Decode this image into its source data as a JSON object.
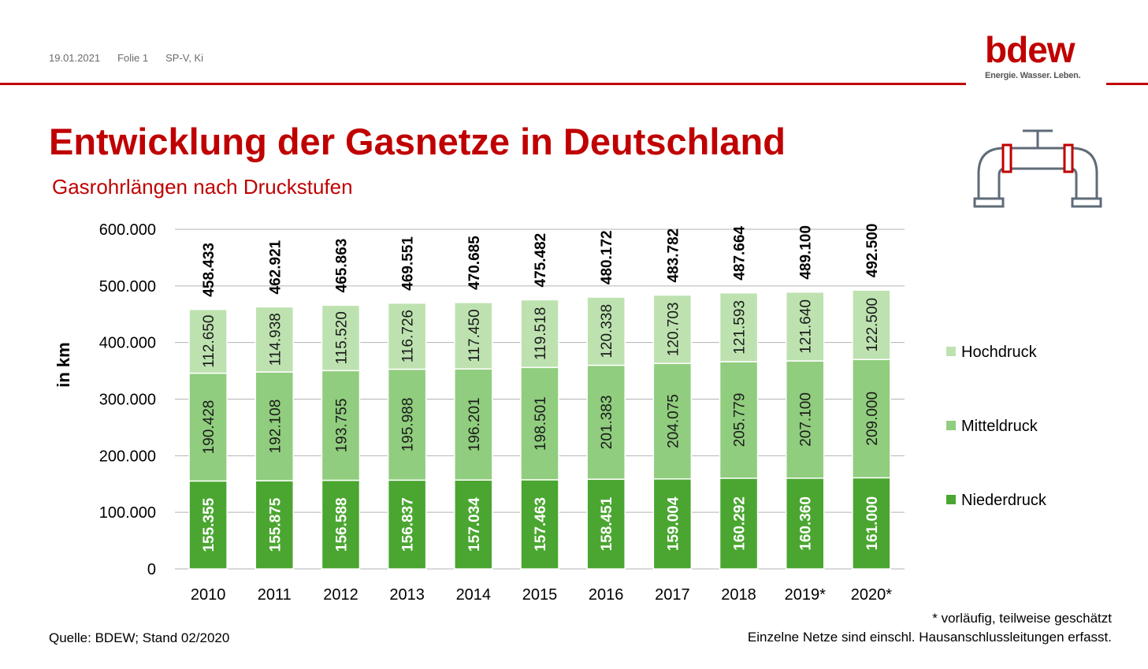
{
  "header": {
    "date": "19.01.2021",
    "slide": "Folie 1",
    "author": "SP-V, Ki"
  },
  "logo": {
    "word": "bdew",
    "tagline": "Energie. Wasser. Leben."
  },
  "title": "Entwicklung der Gasnetze in Deutschland",
  "subtitle": "Gasrohrlängen nach Druckstufen",
  "icons": [
    "pipe-icon"
  ],
  "colors": {
    "accent": "#c00000",
    "niederdruck": "#4aa630",
    "mitteldruck": "#90cd7e",
    "hochdruck": "#bde2b0"
  },
  "chart_data": {
    "type": "bar",
    "stacked": true,
    "categories": [
      "2010",
      "2011",
      "2012",
      "2013",
      "2014",
      "2015",
      "2016",
      "2017",
      "2018",
      "2019*",
      "2020*"
    ],
    "series": [
      {
        "name": "Niederdruck",
        "values": [
          "155.355",
          "155.875",
          "156.588",
          "156.837",
          "157.034",
          "157.463",
          "158.451",
          "159.004",
          "160.292",
          "160.360",
          "161.000"
        ]
      },
      {
        "name": "Mitteldruck",
        "values": [
          "190.428",
          "192.108",
          "193.755",
          "195.988",
          "196.201",
          "198.501",
          "201.383",
          "204.075",
          "205.779",
          "207.100",
          "209.000"
        ]
      },
      {
        "name": "Hochdruck",
        "values": [
          "112.650",
          "114.938",
          "115.520",
          "116.726",
          "117.450",
          "119.518",
          "120.338",
          "120.703",
          "121.593",
          "121.640",
          "122.500"
        ]
      }
    ],
    "totals": [
      "458.433",
      "462.921",
      "465.863",
      "469.551",
      "470.685",
      "475.482",
      "480.172",
      "483.782",
      "487.664",
      "489.100",
      "492.500"
    ],
    "ylabel": "in km",
    "ylim": [
      0,
      600000
    ],
    "yticks": [
      "0",
      "100.000",
      "200.000",
      "300.000",
      "400.000",
      "500.000",
      "600.000"
    ],
    "legend_order": [
      "Hochdruck",
      "Mitteldruck",
      "Niederdruck"
    ],
    "legend_position": "right",
    "grid": true
  },
  "footer": {
    "source": "Quelle: BDEW; Stand 02/2020",
    "note1": "* vorläufig, teilweise geschätzt",
    "note2": "Einzelne Netze sind einschl. Hausanschlussleitungen erfasst."
  }
}
